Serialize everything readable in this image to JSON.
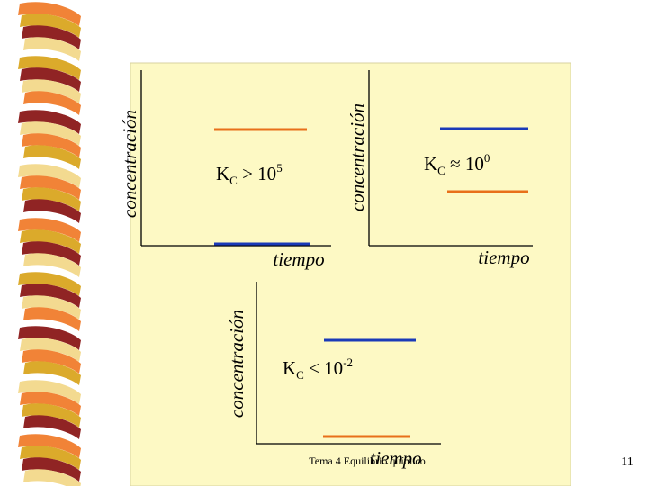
{
  "slide": {
    "footer_text": "Tema 4 Equilibrio químico",
    "page_number": "11"
  },
  "colors": {
    "panel_bg": "#fdf9c4",
    "panel_border": "#d8d2a0",
    "axis": "#000000",
    "reactants_line": "#e8701a",
    "products_line": "#1a3ab8",
    "ribbon_orange": "#f07c2c",
    "ribbon_gold": "#d9a520",
    "ribbon_dark": "#8a1818",
    "ribbon_pale": "#f2d88a"
  },
  "graphs": [
    {
      "y_label": "concentración",
      "x_label": "tiempo",
      "kc_base": "K",
      "kc_sub": "C",
      "kc_rel": " > 10",
      "kc_exp": "5",
      "upper_line": "orange",
      "lower_line": "blue"
    },
    {
      "y_label": "concentración",
      "x_label": "tiempo",
      "kc_base": "K",
      "kc_sub": "C",
      "kc_rel": " ≈ 10",
      "kc_exp": "0",
      "upper_line": "blue",
      "lower_line": "orange"
    },
    {
      "y_label": "concentración",
      "x_label": "tiempo",
      "kc_base": "K",
      "kc_sub": "C",
      "kc_rel": " < 10",
      "kc_exp": "-2",
      "upper_line": "blue",
      "lower_line": "orange"
    }
  ]
}
